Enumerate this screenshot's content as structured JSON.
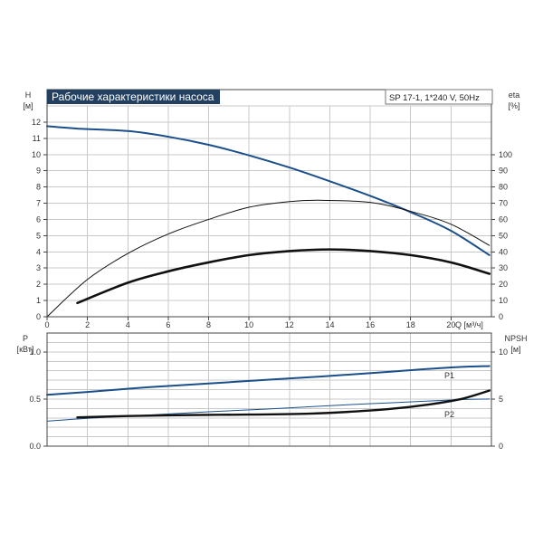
{
  "colors": {
    "blue": "#1b4f8a",
    "black": "#111111",
    "grid": "#c8c8c8",
    "axis": "#444444",
    "title_bg": "#234061"
  },
  "header": {
    "title": "Рабочие характеристики насоса",
    "model": "SP 17-1, 1*240 V, 50Hz"
  },
  "chart_data": [
    {
      "type": "line",
      "panel": "top",
      "xlabel": "Q [м³/ч]",
      "ylabel_left": [
        "H",
        "[м]"
      ],
      "ylabel_right": [
        "eta",
        "[%]"
      ],
      "x_ticks": [
        0,
        2,
        4,
        6,
        8,
        10,
        12,
        14,
        16,
        18,
        20
      ],
      "y_left_ticks": [
        0,
        1,
        2,
        3,
        4,
        5,
        6,
        7,
        8,
        9,
        10,
        11,
        12
      ],
      "y_right_ticks": [
        0,
        10,
        20,
        30,
        40,
        50,
        60,
        70,
        80,
        90,
        100
      ],
      "xlim": [
        0,
        22
      ],
      "ylim_left": [
        0,
        13
      ],
      "ylim_right": [
        0,
        130
      ],
      "grid": true,
      "series": [
        {
          "axis": "left",
          "color": "blue",
          "width": 2,
          "x": [
            0,
            1.5,
            4,
            6,
            8,
            10,
            12,
            14,
            16,
            18,
            20,
            21.9
          ],
          "y": [
            11.75,
            11.6,
            11.45,
            11.1,
            10.6,
            9.95,
            9.2,
            8.35,
            7.45,
            6.45,
            5.3,
            3.8
          ]
        },
        {
          "axis": "right",
          "color": "black",
          "width": 1,
          "x": [
            0,
            2,
            4,
            6,
            8,
            10,
            12,
            13.5,
            16,
            18,
            20,
            21.9
          ],
          "y": [
            0,
            23,
            39,
            51,
            60,
            67.5,
            71,
            71.8,
            70.5,
            65,
            57,
            44
          ]
        },
        {
          "axis": "left",
          "color": "black",
          "width": 2.6,
          "x": [
            1.5,
            4,
            6,
            8,
            10,
            12,
            14,
            16,
            18,
            20,
            21.9
          ],
          "y": [
            0.85,
            2.1,
            2.8,
            3.35,
            3.8,
            4.05,
            4.15,
            4.05,
            3.8,
            3.35,
            2.65
          ]
        }
      ]
    },
    {
      "type": "line",
      "panel": "bottom",
      "ylabel_left": [
        "P",
        "[кВт]"
      ],
      "ylabel_right": [
        "NPSH",
        "[м]"
      ],
      "y_left_ticks": [
        "0.0",
        "0.5",
        "1.0"
      ],
      "y_right_ticks": [
        0,
        5,
        10
      ],
      "xlim": [
        0,
        22
      ],
      "ylim_left": [
        0,
        1.2
      ],
      "ylim_right": [
        0,
        12
      ],
      "grid": true,
      "series": [
        {
          "name": "P1",
          "axis": "left",
          "color": "blue",
          "width": 2,
          "x": [
            0,
            2,
            5,
            8,
            11,
            14,
            17,
            20,
            21.9
          ],
          "y": [
            0.545,
            0.575,
            0.625,
            0.665,
            0.705,
            0.745,
            0.79,
            0.835,
            0.85
          ]
        },
        {
          "name": "P2",
          "axis": "left",
          "color": "blue",
          "width": 1,
          "x": [
            0,
            2,
            5,
            8,
            11,
            14,
            17,
            20,
            21.9
          ],
          "y": [
            0.265,
            0.295,
            0.33,
            0.365,
            0.395,
            0.43,
            0.46,
            0.49,
            0.5
          ]
        },
        {
          "axis": "right",
          "color": "black",
          "width": 2.4,
          "x": [
            1.5,
            4,
            7,
            10,
            13,
            15,
            17,
            19,
            20.5,
            21.9
          ],
          "y": [
            3.05,
            3.2,
            3.3,
            3.35,
            3.45,
            3.65,
            3.95,
            4.45,
            5.0,
            5.9
          ]
        }
      ]
    }
  ]
}
